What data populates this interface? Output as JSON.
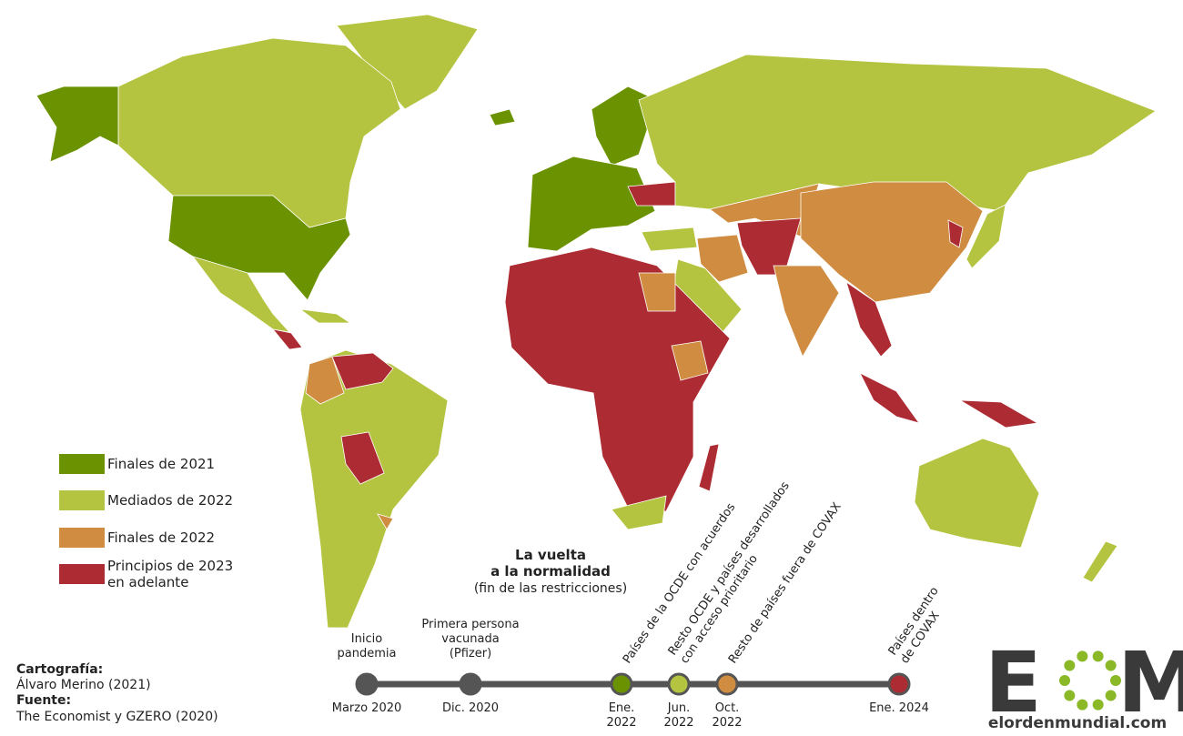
{
  "title": {
    "line1": "La vuelta",
    "line2": "a la normalidad",
    "subtitle": "(fin de las restricciones)"
  },
  "legend": [
    {
      "label": [
        "Finales de 2021"
      ],
      "color": "#6b9200"
    },
    {
      "label": [
        "Mediados de 2022"
      ],
      "color": "#b5c440"
    },
    {
      "label": [
        "Finales de 2022"
      ],
      "color": "#d08c40"
    },
    {
      "label": [
        "Principios de 2023",
        "en adelante"
      ],
      "color": "#ad2b32"
    }
  ],
  "timeline": [
    {
      "date": [
        "Marzo 2020"
      ],
      "label": [
        "Inicio",
        "pandemia"
      ],
      "color": "#555555"
    },
    {
      "date": [
        "Dic. 2020"
      ],
      "label": [
        "Primera persona",
        "vacunada",
        "(Pfizer)"
      ],
      "color": "#555555"
    },
    {
      "date": [
        "Ene.",
        "2022"
      ],
      "label": [
        "Países de la OCDE con acuerdos"
      ],
      "color": "#6b9200"
    },
    {
      "date": [
        "Jun.",
        "2022"
      ],
      "label": [
        "Resto OCDE y países desarrollados",
        "con acceso prioritario"
      ],
      "color": "#b5c440"
    },
    {
      "date": [
        "Oct.",
        "2022"
      ],
      "label": [
        "Resto de países fuera de COVAX"
      ],
      "color": "#d08c40"
    },
    {
      "date": [
        "Ene. 2024"
      ],
      "label": [
        "Países dentro",
        "de COVAX"
      ],
      "color": "#ad2b32"
    }
  ],
  "credits": {
    "cartography_label": "Cartografía:",
    "cartography": "Álvaro Merino (2021)",
    "source_label": "Fuente:",
    "source": "The Economist y GZERO (2020)"
  },
  "logo": {
    "left": "E",
    "right": "M",
    "site": "elordenmundial.com"
  }
}
